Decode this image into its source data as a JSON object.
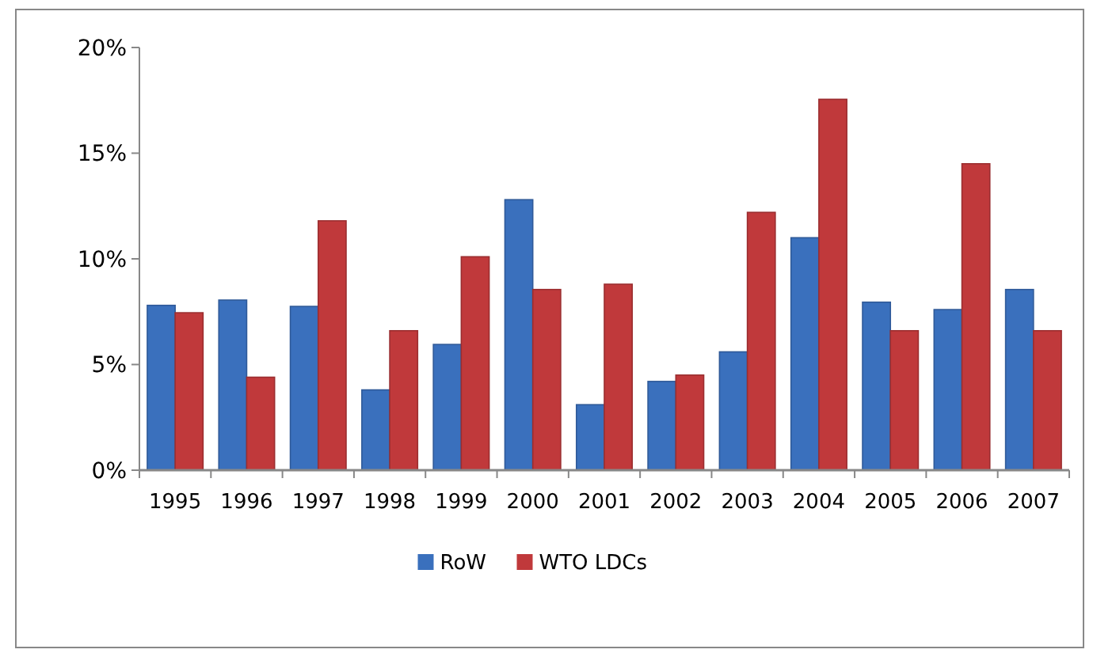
{
  "chart_data": {
    "type": "bar",
    "categories": [
      "1995",
      "1996",
      "1997",
      "1998",
      "1999",
      "2000",
      "2001",
      "2002",
      "2003",
      "2004",
      "2005",
      "2006",
      "2007"
    ],
    "series": [
      {
        "name": "RoW",
        "color": "#3a70bd",
        "values": [
          7.8,
          8.05,
          7.75,
          3.8,
          5.95,
          12.8,
          3.1,
          4.2,
          5.6,
          11.0,
          7.95,
          7.6,
          8.55
        ]
      },
      {
        "name": "WTO LDCs",
        "color": "#c0393b",
        "values": [
          7.45,
          4.4,
          11.8,
          6.6,
          10.1,
          8.55,
          8.8,
          4.5,
          12.2,
          17.55,
          6.6,
          14.5,
          6.6
        ]
      }
    ],
    "ylim": [
      0,
      20
    ],
    "yticks": [
      {
        "value": 0,
        "label": "0%"
      },
      {
        "value": 5,
        "label": "5%"
      },
      {
        "value": 10,
        "label": "10%"
      },
      {
        "value": 15,
        "label": "15%"
      },
      {
        "value": 20,
        "label": "20%"
      }
    ],
    "grid": false,
    "legend": "bottom"
  }
}
